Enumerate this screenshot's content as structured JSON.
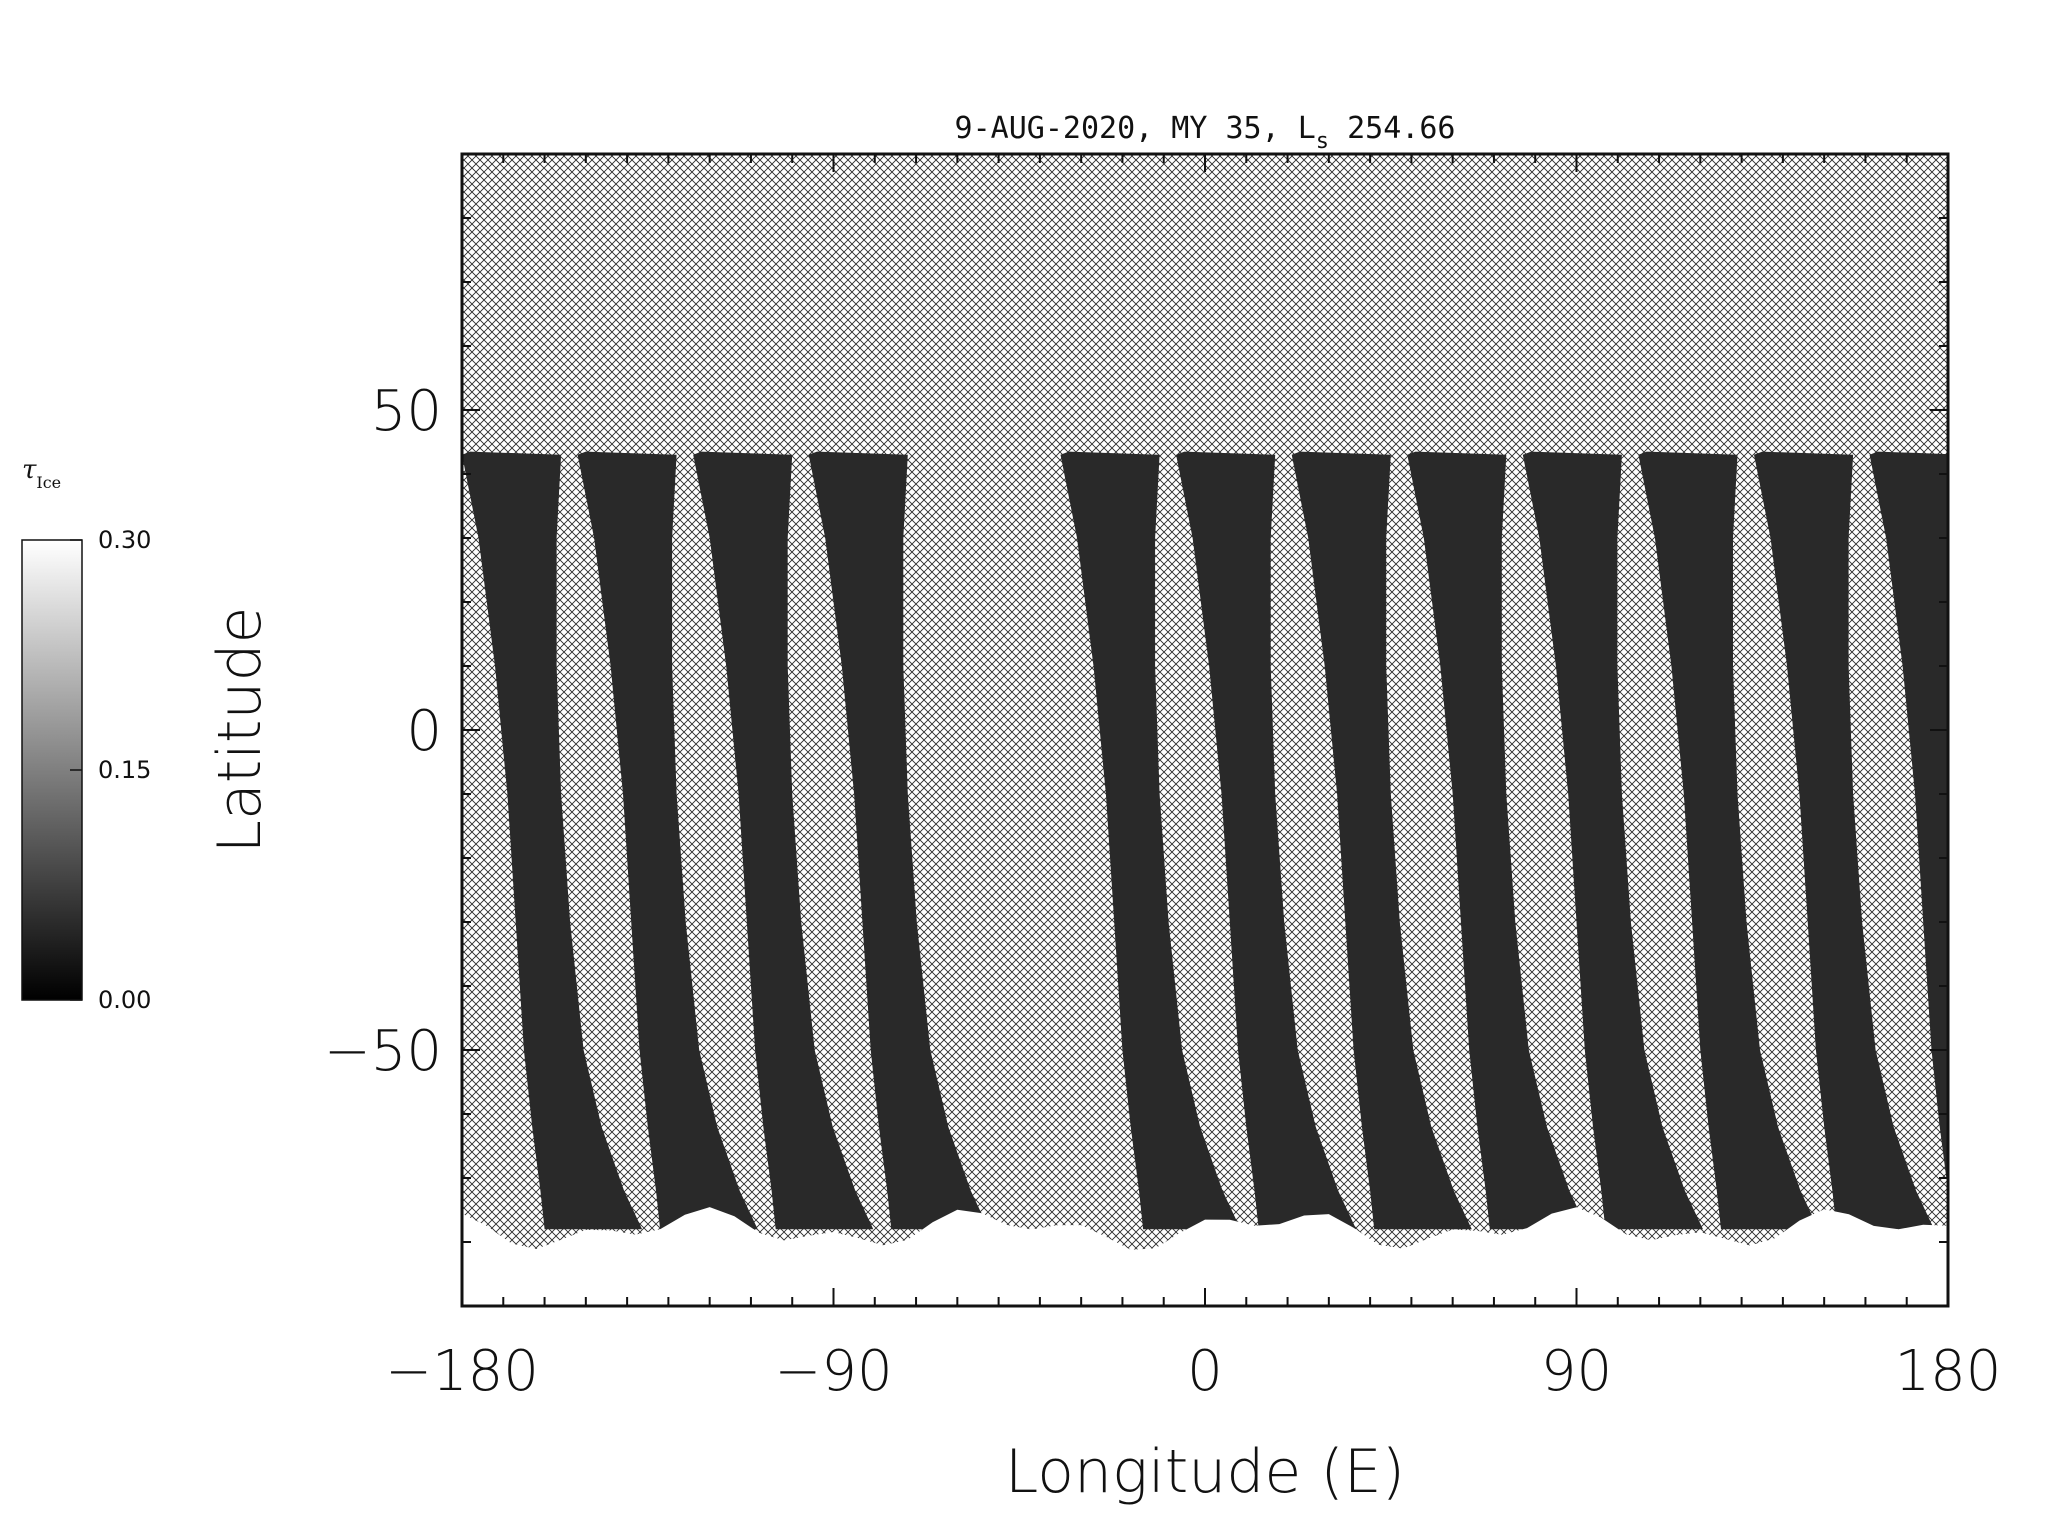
{
  "chart_data": {
    "type": "heatmap",
    "title_parts": {
      "prefix": "9-AUG-2020, MY 35,  L",
      "subscript": "s",
      "suffix": " 254.66"
    },
    "xlabel": "Longitude (E)",
    "ylabel": "Latitude",
    "xlim": [
      -180,
      180
    ],
    "ylim": [
      -90,
      90
    ],
    "x_ticks": [
      -180,
      -90,
      0,
      90,
      180
    ],
    "x_tick_labels": [
      "−180",
      "−90",
      "0",
      "90",
      "180"
    ],
    "y_ticks": [
      50,
      0,
      -50
    ],
    "y_tick_labels": [
      "50",
      "0",
      "−50"
    ],
    "x_minor_step": 10,
    "y_minor_step": 10,
    "missing_data_fill": "crosshatch",
    "colorbar": {
      "title_symbol": "τ",
      "title_subscript": "Ice",
      "range": [
        0.0,
        0.3
      ],
      "ticks": [
        0.0,
        0.15,
        0.3
      ],
      "tick_labels": [
        "0.00",
        "0.15",
        "0.30"
      ],
      "colormap": "grayscale"
    },
    "swaths": {
      "start_longitudes": [
        -180,
        -152,
        -124,
        -96,
        -35,
        -7,
        21,
        49,
        77,
        105,
        133,
        161
      ],
      "width_deg": 24,
      "top_latitude": 43,
      "typical_value": 0.02
    },
    "polar_cap": {
      "latitude_edge": -78,
      "value": 0.3
    }
  },
  "colors": {
    "background": "#ffffff",
    "axis": "#111111",
    "hatch": "#2b2b2b",
    "swath": "#1a1a1a",
    "cap": "#f7f7f7"
  }
}
